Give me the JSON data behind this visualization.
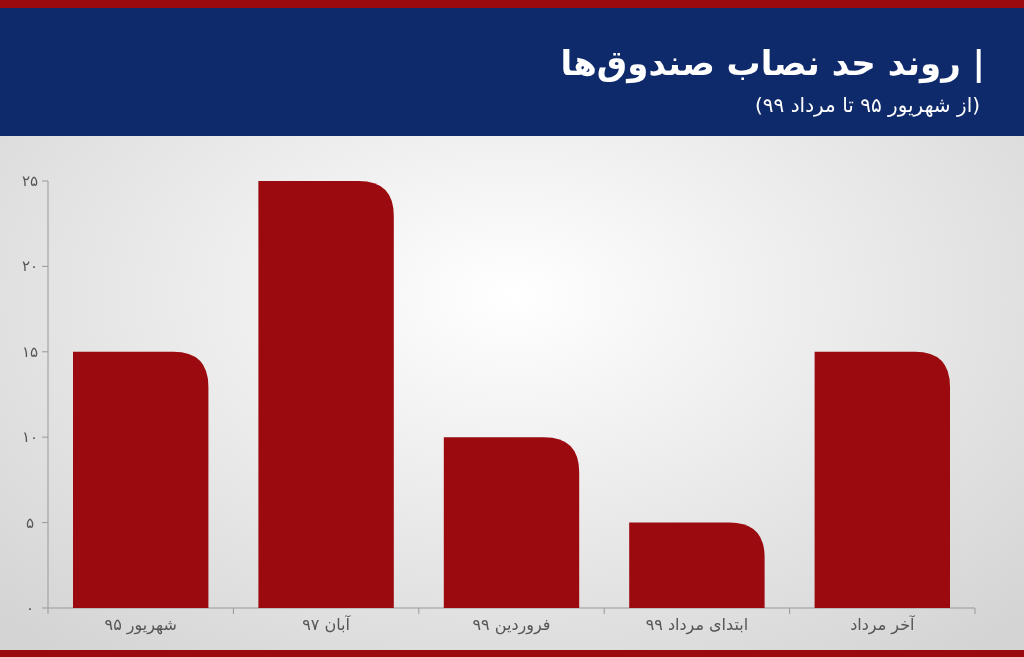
{
  "chart_data": {
    "type": "bar",
    "title": "| روند حد نصاب صندوق‌ها",
    "subtitle": "(از شهریور ۹۵ تا مرداد ۹۹)",
    "categories": [
      "شهریور ۹۵",
      "آبان ۹۷",
      "فروردین ۹۹",
      "ابتدای مرداد ۹۹",
      "آخر مرداد"
    ],
    "values": [
      15,
      25,
      10,
      5,
      15
    ],
    "color": "#9b0a0f",
    "ylim": [
      0,
      25
    ],
    "yticks": [
      {
        "value": 0,
        "label": "۰"
      },
      {
        "value": 5,
        "label": "۵"
      },
      {
        "value": 10,
        "label": "۱۰"
      },
      {
        "value": 15,
        "label": "۱۵"
      },
      {
        "value": 20,
        "label": "۲۰"
      },
      {
        "value": 25,
        "label": "۲۵"
      }
    ],
    "grid": false
  }
}
